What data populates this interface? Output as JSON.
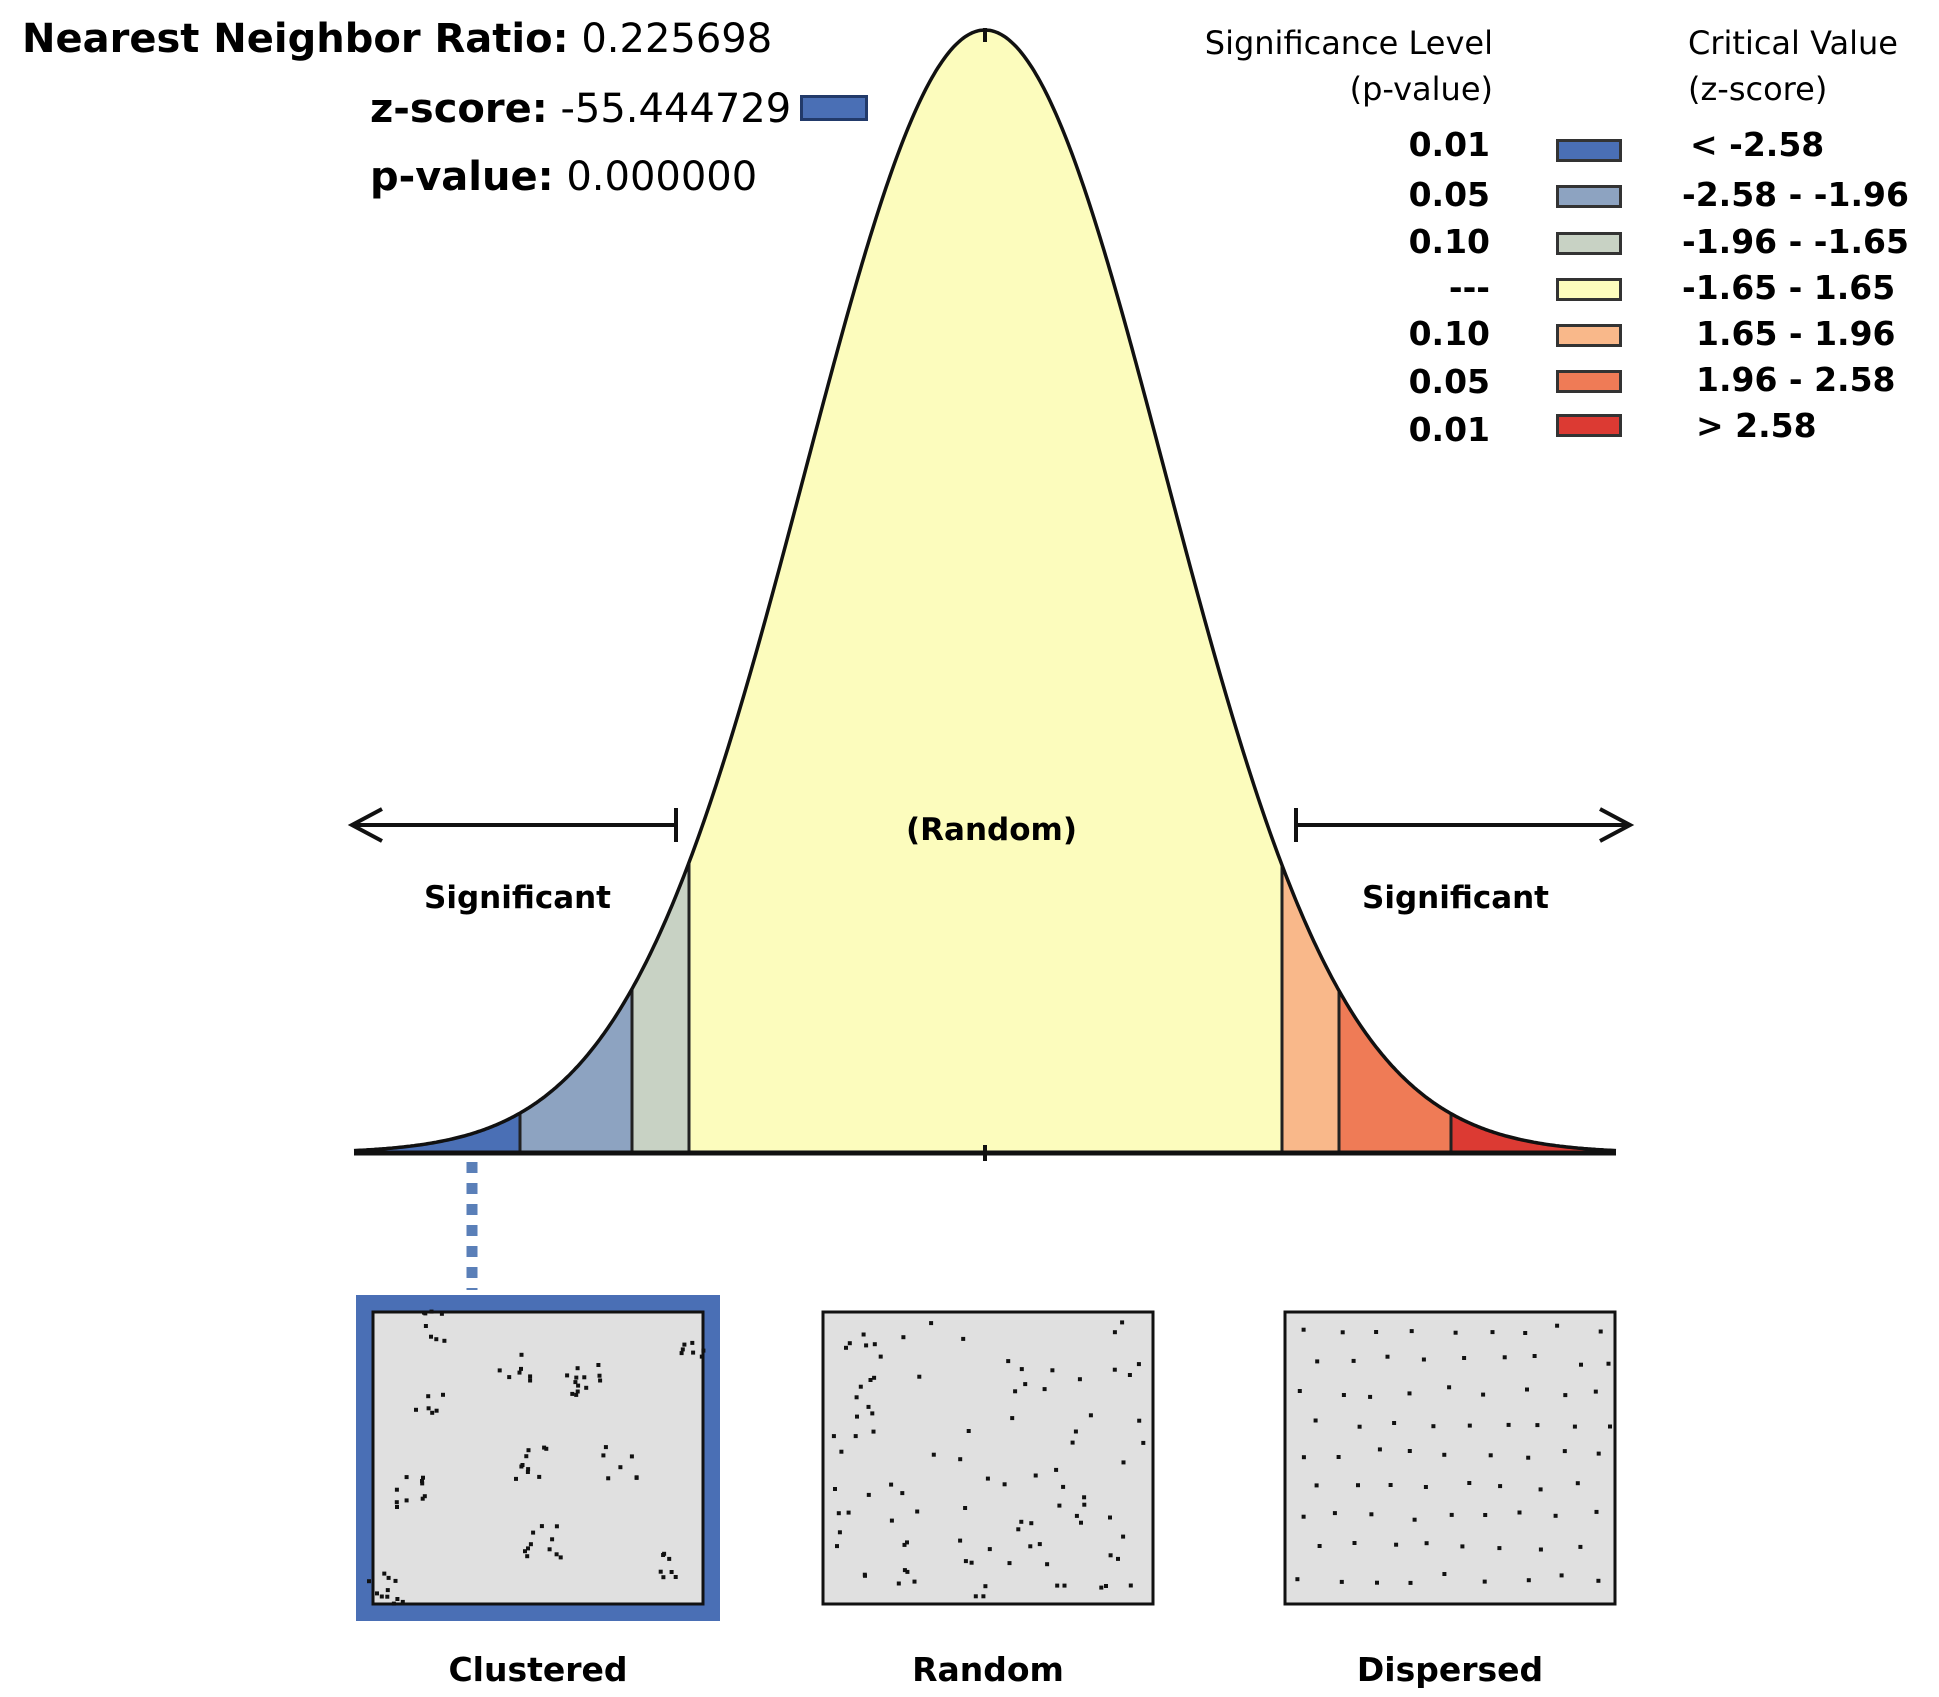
{
  "stats": {
    "ratio_label": "Nearest Neighbor Ratio:",
    "ratio_value": "0.225698",
    "z_label": "z-score:",
    "z_value": "-55.444729",
    "p_label": "p-value:",
    "p_value": "0.000000",
    "marker_color": "#4a6fb5"
  },
  "legend": {
    "sig_header_1": "Significance Level",
    "sig_header_2": "(p-value)",
    "crit_header_1": "Critical Value",
    "crit_header_2": "(z-score)",
    "rows": [
      {
        "p": "0.01",
        "z": "< -2.58",
        "color": "#4a6fb5"
      },
      {
        "p": "0.05",
        "z": "-2.58 - -1.96",
        "color": "#8da3c1"
      },
      {
        "p": "0.10",
        "z": "-1.96 - -1.65",
        "color": "#c8d2c4"
      },
      {
        "p": "---",
        "z": "-1.65 - 1.65",
        "color": "#fcfcbd"
      },
      {
        "p": "0.10",
        "z": "1.65 - 1.96",
        "color": "#f9b88a"
      },
      {
        "p": "0.05",
        "z": "1.96 - 2.58",
        "color": "#ef7b56"
      },
      {
        "p": "0.01",
        "z": "> 2.58",
        "color": "#dc3a33"
      }
    ]
  },
  "curve": {
    "center_label": "(Random)",
    "left_label": "Significant",
    "right_label": "Significant"
  },
  "panels": {
    "clustered": "Clustered",
    "random": "Random",
    "dispersed": "Dispersed",
    "highlight_color": "#4a6fb5"
  }
}
